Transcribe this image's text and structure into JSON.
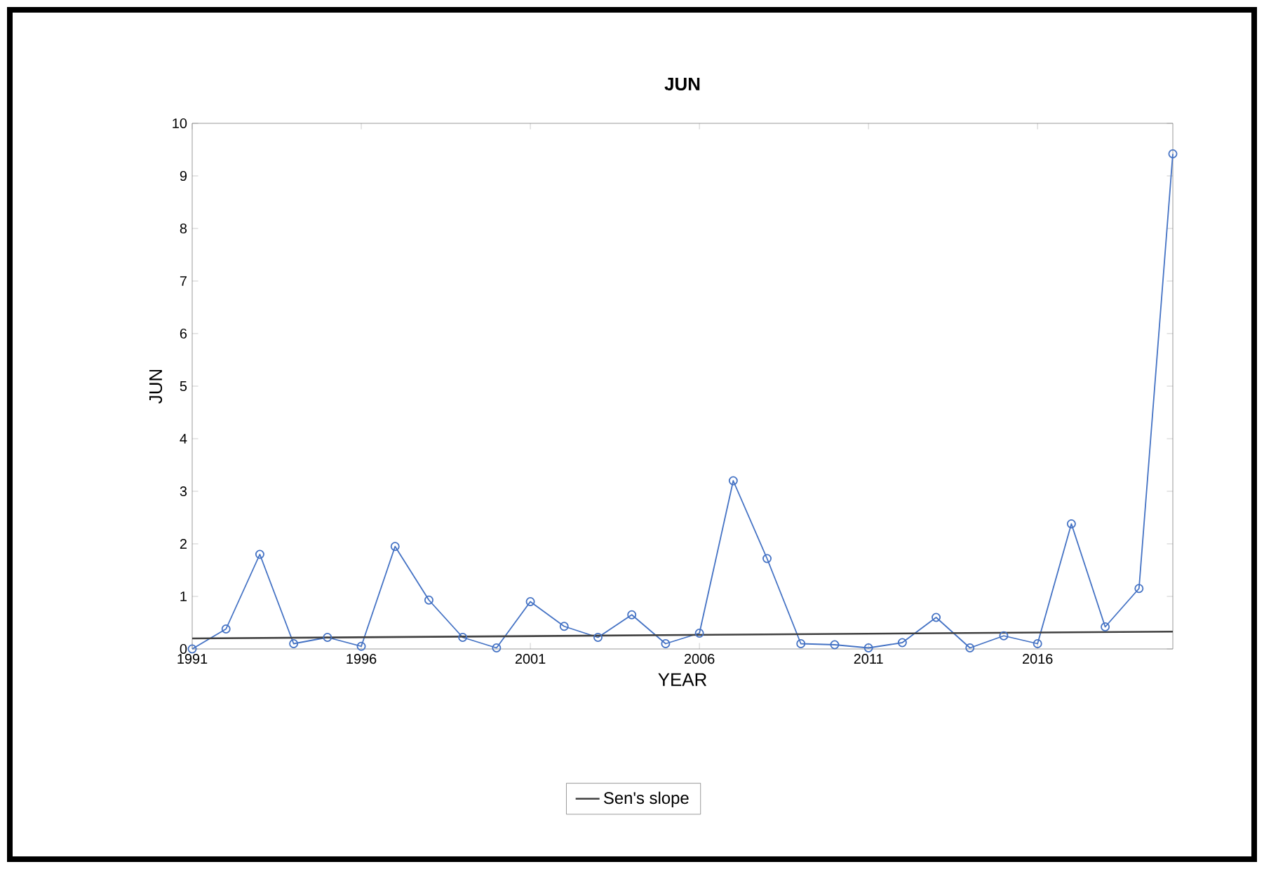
{
  "chart_data": {
    "type": "line",
    "title": "JUN",
    "xlabel": "YEAR",
    "ylabel": "JUN",
    "x": [
      1991,
      1992,
      1993,
      1994,
      1995,
      1996,
      1997,
      1998,
      1999,
      2000,
      2001,
      2002,
      2003,
      2004,
      2005,
      2006,
      2007,
      2008,
      2009,
      2010,
      2011,
      2012,
      2013,
      2014,
      2015,
      2016,
      2017,
      2018,
      2019,
      2020
    ],
    "series": [
      {
        "color": "#4472c4",
        "marker": "circle",
        "values": [
          0,
          0.38,
          1.8,
          0.1,
          0.22,
          0.05,
          1.95,
          0.93,
          0.22,
          0.02,
          0.9,
          0.43,
          0.22,
          0.65,
          0.1,
          0.3,
          3.2,
          1.72,
          0.1,
          0.08,
          0.02,
          0.12,
          0.6,
          0.02,
          0.25,
          0.1,
          2.38,
          0.42,
          1.15,
          9.42
        ]
      },
      {
        "name": "Sen's slope",
        "type": "line",
        "color": "#404040",
        "marker": "none",
        "x": [
          1991,
          2020
        ],
        "values": [
          0.2,
          0.33
        ]
      }
    ],
    "xlim": [
      1991,
      2020
    ],
    "ylim": [
      0,
      10
    ],
    "xticks": [
      1991,
      1996,
      2001,
      2006,
      2011,
      2016
    ],
    "yticks": [
      0,
      1,
      2,
      3,
      4,
      5,
      6,
      7,
      8,
      9,
      10
    ],
    "grid": false,
    "legend": "bottom"
  }
}
